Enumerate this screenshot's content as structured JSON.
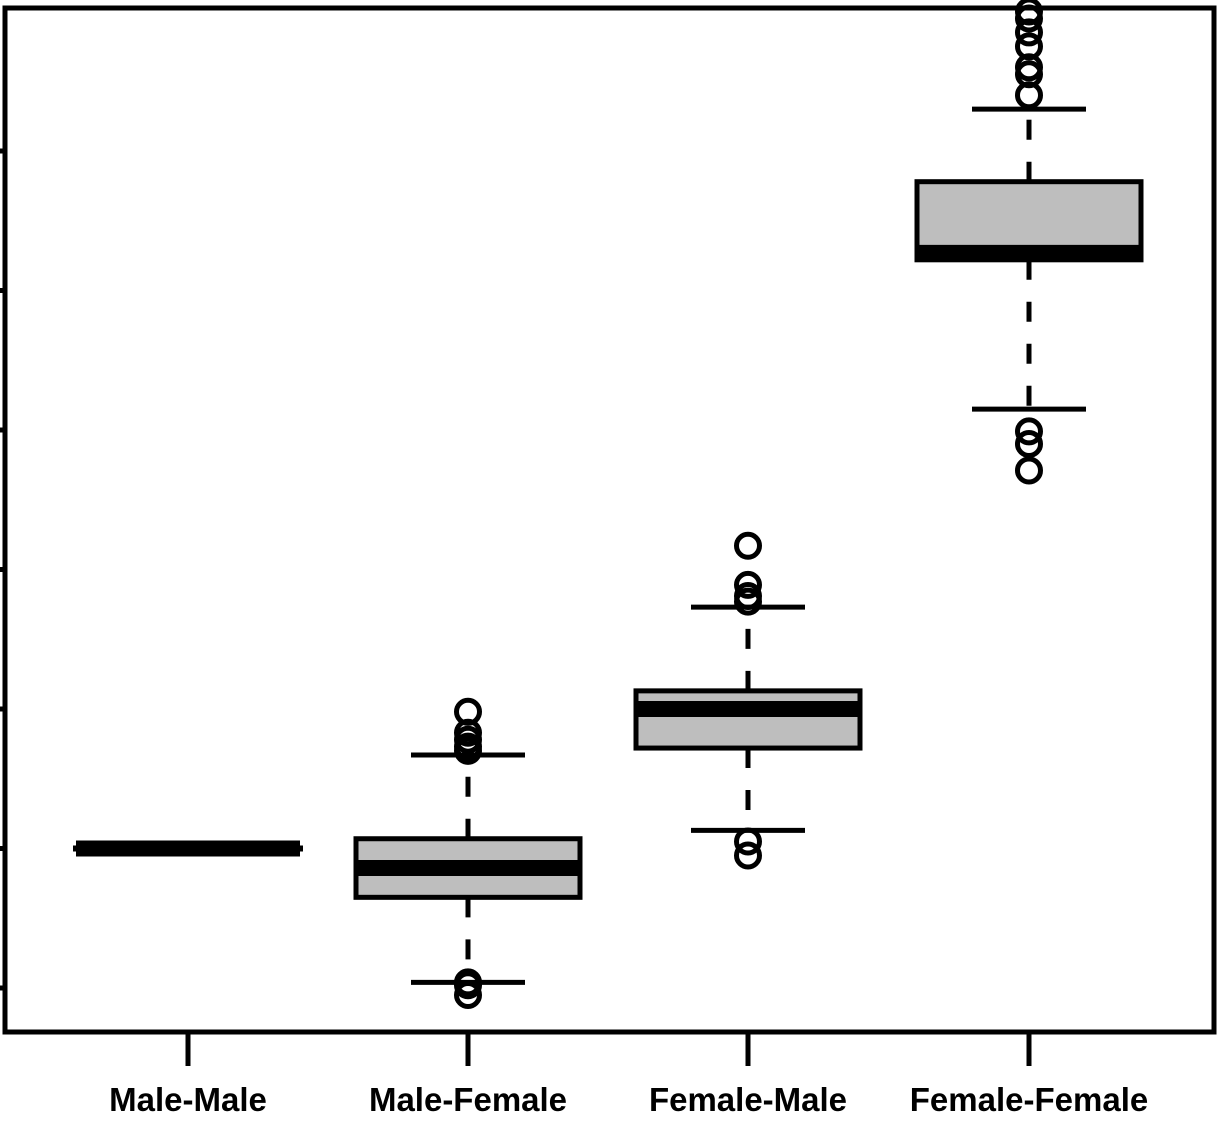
{
  "chart_data": {
    "type": "box",
    "title": "",
    "xlabel": "",
    "ylabel": "",
    "categories": [
      "Male-Male",
      "Male-Female",
      "Female-Male",
      "Female-Female"
    ],
    "ylim": [
      -0.3,
      7.0
    ],
    "y_ticks": [
      0,
      1,
      2,
      3,
      4,
      5,
      6
    ],
    "y_tick_labels_visible": false,
    "grid": false,
    "box_fill": "#bebebe",
    "line_color": "#000000",
    "boxes": [
      {
        "name": "Male-Male",
        "whisker_low": 1.0,
        "q1": 1.0,
        "median": 1.0,
        "q3": 1.0,
        "whisker_high": 1.0,
        "outliers": []
      },
      {
        "name": "Male-Female",
        "whisker_low": 0.04,
        "q1": 0.65,
        "median": 0.86,
        "q3": 1.07,
        "whisker_high": 1.67,
        "outliers": [
          -0.05,
          0.02,
          0.04,
          1.7,
          1.73,
          1.78,
          1.83,
          1.98
        ]
      },
      {
        "name": "Female-Male",
        "whisker_low": 1.13,
        "q1": 1.72,
        "median": 2.0,
        "q3": 2.13,
        "whisker_high": 2.73,
        "outliers": [
          0.95,
          1.05,
          2.77,
          2.81,
          2.89,
          3.17
        ]
      },
      {
        "name": "Female-Female",
        "whisker_low": 4.15,
        "q1": 5.22,
        "median": 5.27,
        "q3": 5.78,
        "whisker_high": 6.3,
        "outliers": [
          3.71,
          3.9,
          3.99,
          6.4,
          6.55,
          6.6,
          6.75,
          6.85,
          6.95,
          7.0
        ]
      }
    ]
  }
}
